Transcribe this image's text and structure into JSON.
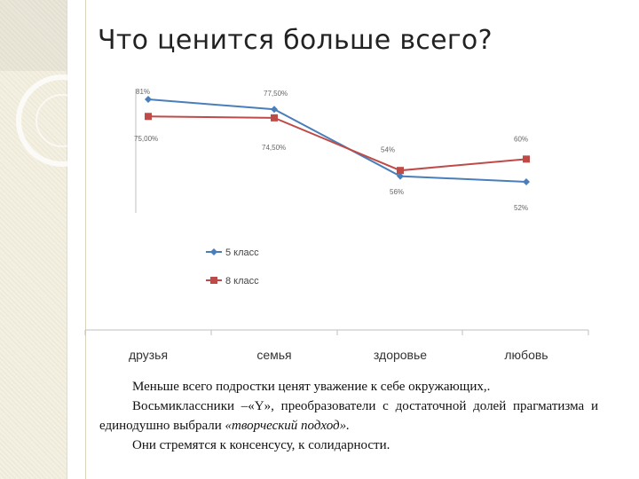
{
  "slide": {
    "title": "Что ценится больше всего?"
  },
  "chart_data": {
    "type": "line",
    "categories": [
      "друзья",
      "семья",
      "здоровье",
      "любовь"
    ],
    "series": [
      {
        "name": "5 класс",
        "values": [
          81,
          77.5,
          54,
          52
        ],
        "labels": [
          "81%",
          "77,50%",
          "54%",
          "52%"
        ],
        "color": "#4a7ebb"
      },
      {
        "name": "8 класс",
        "values": [
          75,
          74.5,
          56,
          60
        ],
        "labels": [
          "75,00%",
          "74,50%",
          "56%",
          "60%"
        ],
        "color": "#be4b48"
      }
    ],
    "ylim": [
      40,
      100
    ],
    "grid": false,
    "legend": "bottom-left"
  },
  "note": {
    "line1": "Меньше всего подростки ценят уважение к себе окружающих,.",
    "line2_a": "Восьмиклассники  –«Y»,  преобразователи  с  достаточной  долей прагматизма и единодушно выбрали ",
    "line2_em": "«творческий подход».",
    "line3": "Они стремятся к консенсусу, к солидарности."
  }
}
